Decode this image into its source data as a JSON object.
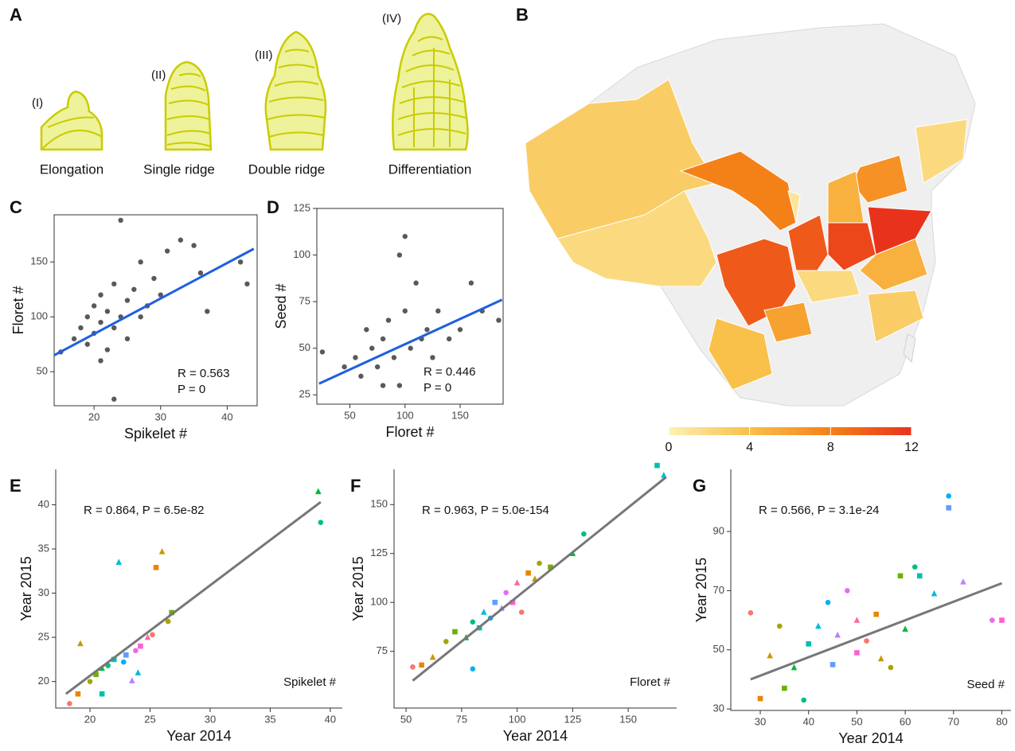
{
  "panel_a": {
    "label": "A",
    "stages": [
      {
        "numeral": "(I)",
        "name": "Elongation"
      },
      {
        "numeral": "(II)",
        "name": "Single ridge"
      },
      {
        "numeral": "(III)",
        "name": "Double ridge"
      },
      {
        "numeral": "(IV)",
        "name": "Differentiation"
      }
    ]
  },
  "panel_b": {
    "label": "B",
    "values": [
      3,
      2,
      8,
      10,
      10,
      11,
      12,
      7,
      5,
      5,
      2,
      4,
      6,
      3,
      2,
      1
    ],
    "colorscale": [
      "#fcf1b4",
      "#f9c04a",
      "#f48118",
      "#e9321c"
    ],
    "clim": [
      0,
      12
    ],
    "ticks": [
      0,
      4,
      8,
      12
    ]
  },
  "chart_data": [
    {
      "type": "scatter",
      "label": "C",
      "x_label": "Spikelet #",
      "y_label": "Floret #",
      "annotation": [
        "R = 0.563",
        "P = 0"
      ],
      "xlim": [
        14,
        44.5
      ],
      "ylim": [
        19,
        193
      ],
      "xticks": [
        20,
        30,
        40
      ],
      "yticks": [
        50,
        100,
        150
      ],
      "color": "#000000",
      "fit_color": "#1f5fe0",
      "x": [
        15,
        17,
        18,
        19,
        19,
        20,
        20,
        21,
        21,
        22,
        22,
        23,
        23,
        24,
        24,
        25,
        25,
        26,
        27,
        27,
        28,
        29,
        30,
        31,
        33,
        35,
        36,
        37,
        42,
        43,
        21,
        23
      ],
      "y": [
        68,
        80,
        90,
        75,
        100,
        85,
        110,
        95,
        120,
        70,
        105,
        90,
        130,
        100,
        188,
        115,
        80,
        125,
        100,
        150,
        110,
        135,
        120,
        160,
        170,
        165,
        140,
        105,
        150,
        130,
        60,
        25
      ],
      "fit": {
        "x": [
          14,
          44
        ],
        "y": [
          65,
          162
        ]
      }
    },
    {
      "type": "scatter",
      "label": "D",
      "x_label": "Floret #",
      "y_label": "Seed #",
      "annotation": [
        "R = 0.446",
        "P = 0"
      ],
      "xlim": [
        20,
        189
      ],
      "ylim": [
        20,
        125
      ],
      "xticks": [
        50,
        100,
        150
      ],
      "yticks": [
        25,
        50,
        75,
        100,
        125
      ],
      "color": "#000000",
      "fit_color": "#1f5fe0",
      "x": [
        25,
        45,
        55,
        60,
        65,
        70,
        75,
        80,
        85,
        90,
        95,
        100,
        100,
        105,
        110,
        115,
        120,
        125,
        130,
        140,
        150,
        160,
        170,
        185,
        80,
        95
      ],
      "y": [
        48,
        40,
        45,
        35,
        60,
        50,
        40,
        55,
        65,
        45,
        100,
        110,
        70,
        50,
        85,
        55,
        60,
        45,
        70,
        55,
        60,
        85,
        70,
        65,
        30,
        30
      ],
      "fit": {
        "x": [
          22,
          188
        ],
        "y": [
          31,
          76
        ]
      }
    },
    {
      "type": "scatter",
      "label": "E",
      "x_label": "Year 2014",
      "y_label": "Year 2015",
      "annotation": [
        "R = 0.864, P = 6.5e-82"
      ],
      "inset_label": "Spikelet #",
      "xlim": [
        17.15,
        41
      ],
      "ylim": [
        17,
        44
      ],
      "xticks": [
        20,
        25,
        30,
        35,
        40
      ],
      "yticks": [
        20,
        25,
        30,
        35,
        40
      ],
      "fit_color": "#777777",
      "palette": [
        "#f8766d",
        "#e58700",
        "#c99800",
        "#a3a500",
        "#6bb100",
        "#00ba38",
        "#00bf7d",
        "#00c0af",
        "#00bcd8",
        "#00b0f6",
        "#619cff",
        "#b983ff",
        "#e76bf3",
        "#fd61d1",
        "#ff67a4"
      ],
      "x": [
        18.3,
        19,
        19.2,
        20,
        20.5,
        21,
        21.5,
        22,
        22.4,
        22.8,
        23,
        23.5,
        23.8,
        24.2,
        24.8,
        25.2,
        25.5,
        26,
        26.5,
        26.8,
        39,
        39.2,
        21,
        24
      ],
      "y": [
        17.5,
        18.6,
        24.3,
        20,
        20.8,
        21.5,
        21.8,
        22.5,
        33.5,
        22.2,
        23,
        20.1,
        23.5,
        24,
        25,
        25.3,
        32.9,
        34.7,
        26.8,
        27.8,
        41.5,
        38,
        18.6,
        21
      ],
      "fit": {
        "x": [
          18,
          39.2
        ],
        "y": [
          18.6,
          40.3
        ]
      }
    },
    {
      "type": "scatter",
      "label": "F",
      "x_label": "Year 2014",
      "y_label": "Year 2015",
      "annotation": [
        "R = 0.963, P = 5.0e-154"
      ],
      "inset_label": "Floret #",
      "xlim": [
        44.6,
        171.8
      ],
      "ylim": [
        46,
        168
      ],
      "xticks": [
        50,
        75,
        100,
        125,
        150
      ],
      "yticks": [
        75,
        100,
        125,
        150
      ],
      "fit_color": "#777777",
      "palette": [
        "#f8766d",
        "#e58700",
        "#c99800",
        "#a3a500",
        "#6bb100",
        "#00ba38",
        "#00bf7d",
        "#00c0af",
        "#00bcd8",
        "#00b0f6",
        "#619cff",
        "#b983ff",
        "#e76bf3",
        "#fd61d1",
        "#ff67a4"
      ],
      "x": [
        53,
        57,
        62,
        68,
        72,
        77,
        80,
        83,
        85,
        88,
        90,
        93,
        95,
        98,
        100,
        102,
        105,
        108,
        110,
        115,
        125,
        130,
        163,
        166,
        80
      ],
      "y": [
        67,
        68,
        72,
        80,
        85,
        82,
        90,
        87,
        95,
        92,
        100,
        97,
        105,
        100,
        110,
        95,
        115,
        112,
        120,
        118,
        125,
        135,
        170,
        165,
        66
      ],
      "fit": {
        "x": [
          53,
          167
        ],
        "y": [
          60,
          164
        ]
      }
    },
    {
      "type": "scatter",
      "label": "G",
      "x_label": "Year 2014",
      "y_label": "Year 2015",
      "annotation": [
        "R = 0.566, P = 3.1e-24"
      ],
      "inset_label": "Seed #",
      "xlim": [
        23.9,
        81.9
      ],
      "ylim": [
        29.5,
        111
      ],
      "xticks": [
        30,
        40,
        50,
        60,
        70,
        80
      ],
      "yticks": [
        30,
        50,
        70,
        90
      ],
      "fit_color": "#777777",
      "palette": [
        "#f8766d",
        "#e58700",
        "#c99800",
        "#a3a500",
        "#6bb100",
        "#00ba38",
        "#00bf7d",
        "#00c0af",
        "#00bcd8",
        "#00b0f6",
        "#619cff",
        "#b983ff",
        "#e76bf3",
        "#fd61d1",
        "#ff67a4"
      ],
      "x": [
        28,
        30,
        32,
        34,
        35,
        37,
        39,
        40,
        42,
        44,
        45,
        46,
        48,
        50,
        50,
        52,
        54,
        55,
        57,
        59,
        60,
        62,
        63,
        66,
        69,
        69,
        72,
        78,
        80
      ],
      "y": [
        62.5,
        33.5,
        48,
        58,
        37,
        44,
        33,
        52,
        58,
        66,
        45,
        55,
        70,
        49,
        60,
        53,
        62,
        47,
        44,
        75,
        57,
        78,
        75,
        69,
        102,
        98,
        73,
        60,
        60
      ],
      "fit": {
        "x": [
          28,
          80
        ],
        "y": [
          40,
          72.5
        ]
      }
    }
  ]
}
